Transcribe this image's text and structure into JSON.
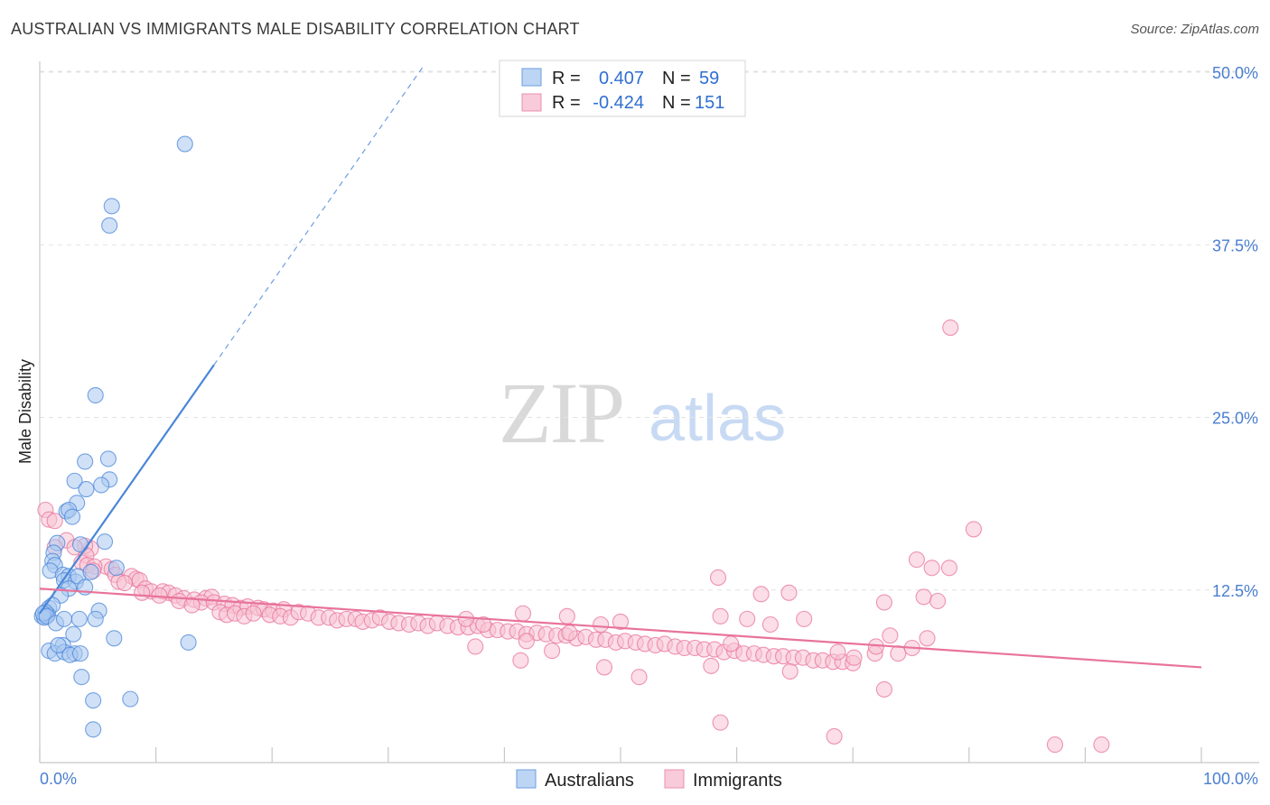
{
  "header": {
    "title": "AUSTRALIAN VS IMMIGRANTS MALE DISABILITY CORRELATION CHART",
    "source": "Source: ZipAtlas.com"
  },
  "watermark": {
    "zip": "ZIP",
    "atlas": "atlas"
  },
  "legend_box": {
    "rows": [
      {
        "r_label": "R =",
        "r_value": "0.407",
        "n_label": "N =",
        "n_value": "59",
        "color": "#8fb8ec"
      },
      {
        "r_label": "R =",
        "r_value": "-0.424",
        "n_label": "N =",
        "n_value": "151",
        "color": "#f2a7bf"
      }
    ]
  },
  "bottom_legend": {
    "australians": "Australians",
    "immigrants": "Immigrants"
  },
  "chart_data": {
    "type": "scatter",
    "title": "AUSTRALIAN VS IMMIGRANTS MALE DISABILITY CORRELATION CHART",
    "xlabel": "",
    "ylabel": "Male Disability",
    "xlim": [
      0,
      100
    ],
    "ylim": [
      0,
      52
    ],
    "x_tick_labels": [
      "0.0%",
      "100.0%"
    ],
    "y_ticks": [
      12.5,
      25.0,
      37.5,
      50.0
    ],
    "y_tick_labels": [
      "12.5%",
      "25.0%",
      "37.5%",
      "50.0%"
    ],
    "grid": "horizontal dashed",
    "legend_position": "top-center",
    "series": [
      {
        "name": "Australians",
        "color": "#4a86d8",
        "fill": "#a9c8f0",
        "r": 0.407,
        "n": 59,
        "trend": {
          "x0": 0,
          "y0": 10.8,
          "x1": 15,
          "y1": 28.8,
          "dashed_to_x": 33,
          "dashed_to_y": 50.4
        },
        "points": [
          [
            12.5,
            44.8
          ],
          [
            6.2,
            40.3
          ],
          [
            6.0,
            38.9
          ],
          [
            4.8,
            26.6
          ],
          [
            5.9,
            22.0
          ],
          [
            3.9,
            21.8
          ],
          [
            3.0,
            20.4
          ],
          [
            6.0,
            20.5
          ],
          [
            5.3,
            20.1
          ],
          [
            4.0,
            19.8
          ],
          [
            3.2,
            18.8
          ],
          [
            2.3,
            18.2
          ],
          [
            2.5,
            18.3
          ],
          [
            2.8,
            17.8
          ],
          [
            5.6,
            16.0
          ],
          [
            3.5,
            15.8
          ],
          [
            1.5,
            15.9
          ],
          [
            1.2,
            15.2
          ],
          [
            6.6,
            14.1
          ],
          [
            1.1,
            14.6
          ],
          [
            1.3,
            14.3
          ],
          [
            0.9,
            13.9
          ],
          [
            2.0,
            13.6
          ],
          [
            2.5,
            13.5
          ],
          [
            2.1,
            13.2
          ],
          [
            3.1,
            13.1
          ],
          [
            3.3,
            13.5
          ],
          [
            4.4,
            13.8
          ],
          [
            2.5,
            12.6
          ],
          [
            3.9,
            12.7
          ],
          [
            1.8,
            12.1
          ],
          [
            0.8,
            11.2
          ],
          [
            1.1,
            11.4
          ],
          [
            0.7,
            10.7
          ],
          [
            0.2,
            10.6
          ],
          [
            0.5,
            10.9
          ],
          [
            0.4,
            10.5
          ],
          [
            0.3,
            10.8
          ],
          [
            0.6,
            10.6
          ],
          [
            3.4,
            10.4
          ],
          [
            5.1,
            11.0
          ],
          [
            1.4,
            10.1
          ],
          [
            2.1,
            10.4
          ],
          [
            4.8,
            10.4
          ],
          [
            6.4,
            9.0
          ],
          [
            12.8,
            8.7
          ],
          [
            0.8,
            8.1
          ],
          [
            2.0,
            8.5
          ],
          [
            1.3,
            7.9
          ],
          [
            2.1,
            8.0
          ],
          [
            3.0,
            7.9
          ],
          [
            2.6,
            7.8
          ],
          [
            3.5,
            7.9
          ],
          [
            2.9,
            9.3
          ],
          [
            1.6,
            8.5
          ],
          [
            3.6,
            6.2
          ],
          [
            7.8,
            4.6
          ],
          [
            4.6,
            4.5
          ],
          [
            4.6,
            2.4
          ]
        ]
      },
      {
        "name": "Immigrants",
        "color": "#e8739b",
        "fill": "#f7c2d3",
        "r": -0.424,
        "n": 151,
        "trend": {
          "x0": 0,
          "y0": 12.6,
          "x1": 100,
          "y1": 6.9
        },
        "points": [
          [
            78.4,
            31.5
          ],
          [
            80.4,
            16.9
          ],
          [
            0.5,
            18.3
          ],
          [
            0.8,
            17.6
          ],
          [
            1.3,
            17.5
          ],
          [
            2.3,
            16.1
          ],
          [
            4.4,
            15.5
          ],
          [
            3.9,
            15.7
          ],
          [
            4.0,
            15.0
          ],
          [
            3.0,
            15.6
          ],
          [
            1.3,
            15.6
          ],
          [
            3.6,
            14.5
          ],
          [
            5.7,
            14.2
          ],
          [
            4.1,
            14.3
          ],
          [
            4.7,
            14.2
          ],
          [
            6.2,
            14.0
          ],
          [
            4.6,
            13.9
          ],
          [
            6.5,
            13.6
          ],
          [
            7.9,
            13.5
          ],
          [
            8.3,
            13.3
          ],
          [
            8.6,
            13.2
          ],
          [
            6.8,
            13.1
          ],
          [
            7.3,
            13.0
          ],
          [
            9.1,
            12.6
          ],
          [
            9.6,
            12.4
          ],
          [
            8.8,
            12.3
          ],
          [
            10.6,
            12.4
          ],
          [
            11.1,
            12.3
          ],
          [
            10.3,
            12.1
          ],
          [
            11.7,
            12.1
          ],
          [
            12.4,
            11.9
          ],
          [
            12.0,
            11.7
          ],
          [
            13.3,
            11.8
          ],
          [
            14.3,
            11.9
          ],
          [
            14.8,
            12.0
          ],
          [
            13.9,
            11.6
          ],
          [
            13.1,
            11.4
          ],
          [
            15.0,
            11.6
          ],
          [
            15.9,
            11.5
          ],
          [
            16.6,
            11.4
          ],
          [
            17.3,
            11.2
          ],
          [
            17.9,
            11.3
          ],
          [
            18.8,
            11.2
          ],
          [
            19.3,
            11.1
          ],
          [
            20.1,
            11.0
          ],
          [
            21.0,
            11.1
          ],
          [
            15.5,
            10.9
          ],
          [
            16.1,
            10.7
          ],
          [
            16.8,
            10.8
          ],
          [
            17.6,
            10.6
          ],
          [
            18.4,
            10.8
          ],
          [
            19.8,
            10.7
          ],
          [
            20.7,
            10.6
          ],
          [
            21.6,
            10.5
          ],
          [
            22.3,
            10.9
          ],
          [
            23.1,
            10.8
          ],
          [
            24.0,
            10.5
          ],
          [
            24.9,
            10.5
          ],
          [
            25.6,
            10.3
          ],
          [
            26.4,
            10.4
          ],
          [
            27.2,
            10.4
          ],
          [
            27.8,
            10.2
          ],
          [
            28.6,
            10.3
          ],
          [
            29.3,
            10.5
          ],
          [
            30.1,
            10.2
          ],
          [
            30.9,
            10.1
          ],
          [
            31.8,
            10.0
          ],
          [
            32.6,
            10.1
          ],
          [
            33.4,
            9.9
          ],
          [
            34.2,
            10.1
          ],
          [
            35.1,
            9.9
          ],
          [
            36.0,
            9.8
          ],
          [
            36.9,
            9.8
          ],
          [
            37.7,
            9.9
          ],
          [
            38.6,
            9.6
          ],
          [
            39.4,
            9.6
          ],
          [
            40.3,
            9.5
          ],
          [
            41.1,
            9.5
          ],
          [
            41.9,
            9.3
          ],
          [
            42.8,
            9.4
          ],
          [
            43.6,
            9.3
          ],
          [
            44.5,
            9.2
          ],
          [
            45.3,
            9.2
          ],
          [
            46.2,
            9.0
          ],
          [
            47.0,
            9.1
          ],
          [
            47.9,
            8.9
          ],
          [
            48.7,
            8.9
          ],
          [
            49.6,
            8.7
          ],
          [
            50.4,
            8.8
          ],
          [
            51.3,
            8.7
          ],
          [
            52.1,
            8.6
          ],
          [
            53.0,
            8.5
          ],
          [
            53.8,
            8.6
          ],
          [
            54.7,
            8.4
          ],
          [
            55.5,
            8.3
          ],
          [
            56.4,
            8.3
          ],
          [
            57.2,
            8.2
          ],
          [
            58.1,
            8.2
          ],
          [
            58.9,
            8.0
          ],
          [
            59.8,
            8.1
          ],
          [
            60.6,
            7.9
          ],
          [
            61.5,
            7.9
          ],
          [
            62.3,
            7.8
          ],
          [
            63.2,
            7.7
          ],
          [
            64.0,
            7.7
          ],
          [
            64.9,
            7.6
          ],
          [
            65.7,
            7.6
          ],
          [
            66.6,
            7.4
          ],
          [
            67.4,
            7.4
          ],
          [
            68.3,
            7.3
          ],
          [
            69.1,
            7.3
          ],
          [
            70.0,
            7.2
          ],
          [
            45.4,
            10.6
          ],
          [
            50.0,
            10.2
          ],
          [
            48.3,
            10.0
          ],
          [
            41.6,
            10.8
          ],
          [
            36.7,
            10.4
          ],
          [
            38.2,
            10.0
          ],
          [
            58.6,
            10.6
          ],
          [
            60.9,
            10.4
          ],
          [
            62.9,
            10.0
          ],
          [
            65.8,
            10.4
          ],
          [
            62.1,
            12.2
          ],
          [
            64.5,
            12.3
          ],
          [
            58.4,
            13.4
          ],
          [
            72.7,
            11.6
          ],
          [
            76.1,
            12.0
          ],
          [
            76.8,
            14.1
          ],
          [
            75.5,
            14.7
          ],
          [
            78.3,
            14.1
          ],
          [
            77.3,
            11.7
          ],
          [
            73.9,
            7.9
          ],
          [
            64.6,
            6.6
          ],
          [
            71.9,
            7.9
          ],
          [
            75.1,
            8.3
          ],
          [
            76.4,
            9.0
          ],
          [
            73.2,
            9.2
          ],
          [
            72.0,
            8.4
          ],
          [
            70.1,
            7.6
          ],
          [
            68.7,
            8.0
          ],
          [
            72.7,
            5.3
          ],
          [
            59.5,
            8.6
          ],
          [
            57.8,
            7.0
          ],
          [
            51.6,
            6.2
          ],
          [
            48.6,
            6.9
          ],
          [
            45.6,
            9.4
          ],
          [
            44.1,
            8.1
          ],
          [
            41.4,
            7.4
          ],
          [
            41.9,
            8.8
          ],
          [
            37.5,
            8.4
          ],
          [
            58.6,
            2.9
          ],
          [
            68.4,
            1.9
          ],
          [
            87.4,
            1.3
          ],
          [
            91.4,
            1.3
          ]
        ]
      }
    ]
  }
}
